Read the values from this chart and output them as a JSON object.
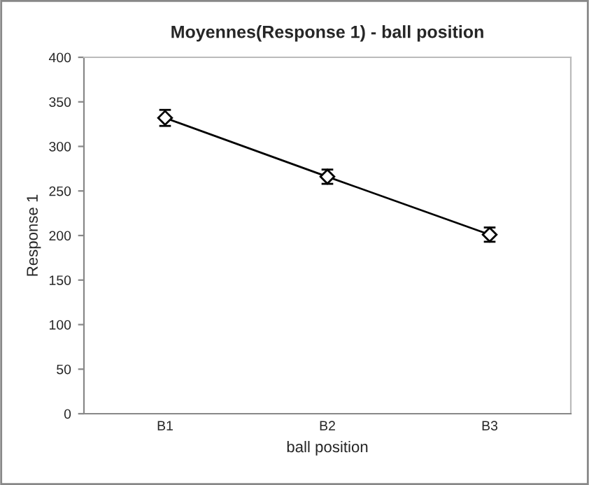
{
  "chart_data": {
    "type": "line",
    "title": "Moyennes(Response 1) - ball position",
    "xlabel": "ball position",
    "ylabel": "Response 1",
    "categories": [
      "B1",
      "B2",
      "B3"
    ],
    "series": [
      {
        "color": "#000000",
        "values": [
          332,
          266,
          201
        ],
        "errors": [
          9,
          8,
          8
        ]
      }
    ],
    "ylim": [
      0,
      400
    ],
    "yticks": [
      0,
      50,
      100,
      150,
      200,
      250,
      300,
      350,
      400
    ],
    "marker": "diamond",
    "line_style": "solid",
    "grid": false,
    "legend": false
  }
}
